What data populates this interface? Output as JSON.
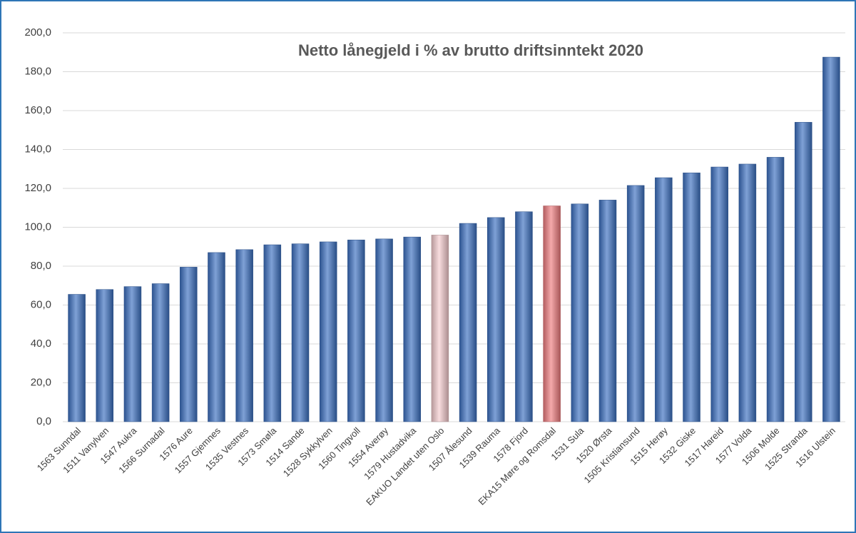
{
  "chart_data": {
    "type": "bar",
    "title": "Netto lånegjeld i % av brutto driftsinntekt 2020",
    "categories": [
      "1563 Sunndal",
      "1511 Vanylven",
      "1547 Aukra",
      "1566 Surnadal",
      "1576 Aure",
      "1557 Gjemnes",
      "1535 Vestnes",
      "1573 Smøla",
      "1514 Sande",
      "1528 Sykkylven",
      "1560 Tingvoll",
      "1554 Averøy",
      "1579 Hustadvika",
      "EAKUO Landet uten Oslo",
      "1507 Ålesund",
      "1539 Rauma",
      "1578 Fjord",
      "EKA15 Møre og Romsdal",
      "1531 Sula",
      "1520 Ørsta",
      "1505 Kristiansund",
      "1515 Herøy",
      "1532 Giske",
      "1517 Hareid",
      "1577 Volda",
      "1506 Molde",
      "1525 Stranda",
      "1516 Ulstein"
    ],
    "values": [
      65.5,
      68,
      69.5,
      71,
      79.5,
      87,
      88.5,
      91,
      91.5,
      92.5,
      93.5,
      94,
      95,
      96,
      102,
      105,
      108,
      111,
      112,
      114,
      121.5,
      125.5,
      128,
      131,
      132.5,
      136,
      154,
      187.5
    ],
    "colors": [
      "#3a6fc0",
      "#3a6fc0",
      "#3a6fc0",
      "#3a6fc0",
      "#3a6fc0",
      "#3a6fc0",
      "#3a6fc0",
      "#3a6fc0",
      "#3a6fc0",
      "#3a6fc0",
      "#3a6fc0",
      "#3a6fc0",
      "#3a6fc0",
      "#f4cbcd",
      "#3a6fc0",
      "#3a6fc0",
      "#3a6fc0",
      "#ee7b7e",
      "#3a6fc0",
      "#3a6fc0",
      "#3a6fc0",
      "#3a6fc0",
      "#3a6fc0",
      "#3a6fc0",
      "#3a6fc0",
      "#3a6fc0",
      "#3a6fc0",
      "#3a6fc0"
    ],
    "ylim": [
      0,
      200
    ],
    "yticks": [
      {
        "value": 0,
        "label": "0,0"
      },
      {
        "value": 20,
        "label": "20,0"
      },
      {
        "value": 40,
        "label": "40,0"
      },
      {
        "value": 60,
        "label": "60,0"
      },
      {
        "value": 80,
        "label": "80,0"
      },
      {
        "value": 100,
        "label": "100,0"
      },
      {
        "value": 120,
        "label": "120,0"
      },
      {
        "value": 140,
        "label": "140,0"
      },
      {
        "value": 160,
        "label": "160,0"
      },
      {
        "value": 180,
        "label": "180,0"
      },
      {
        "value": 200,
        "label": "200,0"
      }
    ],
    "grid": true
  }
}
